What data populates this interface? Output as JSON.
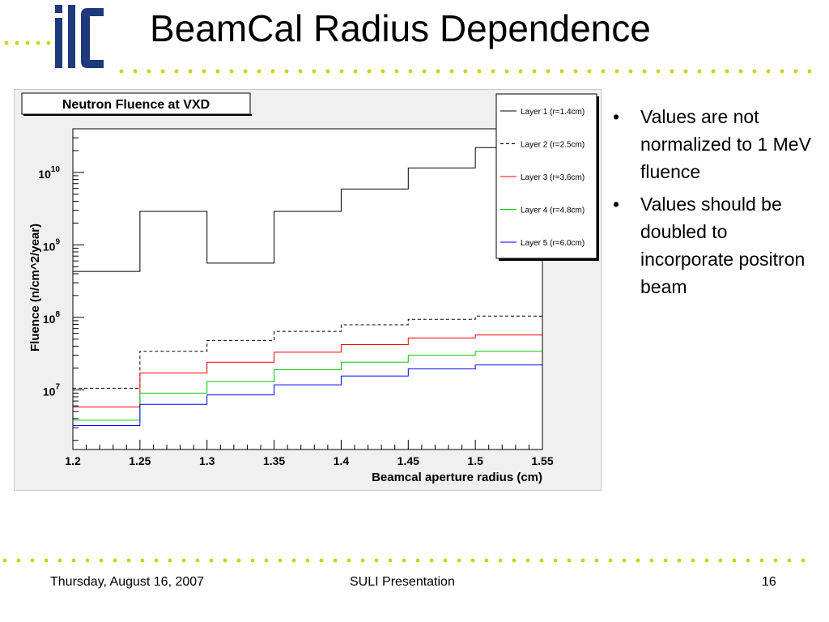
{
  "slide": {
    "title": "BeamCal Radius Dependence",
    "logo_text": "ilc",
    "accent_dot_color": "#c8d400",
    "logo_color": "#1f3a7a"
  },
  "bullets": [
    "Values are not normalized to 1 MeV fluence",
    "Values should be doubled to incorporate positron beam"
  ],
  "footer": {
    "date": "Thursday, August 16, 2007",
    "center": "SULI Presentation",
    "page": "16"
  },
  "chart_data": {
    "type": "line",
    "step": true,
    "title": "Neutron Fluence at VXD",
    "xlabel": "Beamcal aperture radius (cm)",
    "ylabel": "Fluence (n/cm^2/year)",
    "xlim": [
      1.2,
      1.55
    ],
    "ylim": [
      1500000,
      40000000000
    ],
    "yscale": "log",
    "x_ticks": [
      "1.2",
      "1.25",
      "1.3",
      "1.35",
      "1.4",
      "1.45",
      "1.5",
      "1.55"
    ],
    "y_ticks": [
      {
        "base": "10",
        "exp": "7",
        "value": 10000000
      },
      {
        "base": "10",
        "exp": "8",
        "value": 100000000
      },
      {
        "base": "10",
        "exp": "9",
        "value": 1000000000
      },
      {
        "base": "10",
        "exp": "10",
        "value": 10000000000
      }
    ],
    "bin_edges": [
      1.2,
      1.25,
      1.3,
      1.35,
      1.4,
      1.45,
      1.5,
      1.55
    ],
    "legend_position": "top-right",
    "grid": false,
    "series": [
      {
        "name": "Layer 1 (r=1.4cm)",
        "color": "#000000",
        "dash": false,
        "values": [
          430000000,
          2900000000,
          560000000,
          2900000000,
          5900000000,
          11500000000,
          22000000000
        ]
      },
      {
        "name": "Layer 2 (r=2.5cm)",
        "color": "#000000",
        "dash": true,
        "values": [
          10500000,
          34000000,
          48000000,
          64000000,
          79000000,
          94000000,
          104000000
        ]
      },
      {
        "name": "Layer 3 (r=3.6cm)",
        "color": "#ff0000",
        "dash": false,
        "values": [
          5800000,
          17000000,
          24000000,
          33000000,
          42000000,
          52000000,
          57000000
        ]
      },
      {
        "name": "Layer 4 (r=4.8cm)",
        "color": "#00cc00",
        "dash": false,
        "values": [
          3800000,
          9000000,
          13000000,
          19000000,
          24000000,
          30000000,
          34000000
        ]
      },
      {
        "name": "Layer 5 (r=6.0cm)",
        "color": "#0000ff",
        "dash": false,
        "values": [
          3200000,
          6300000,
          8500000,
          11700000,
          15500000,
          19500000,
          22000000
        ]
      }
    ]
  }
}
